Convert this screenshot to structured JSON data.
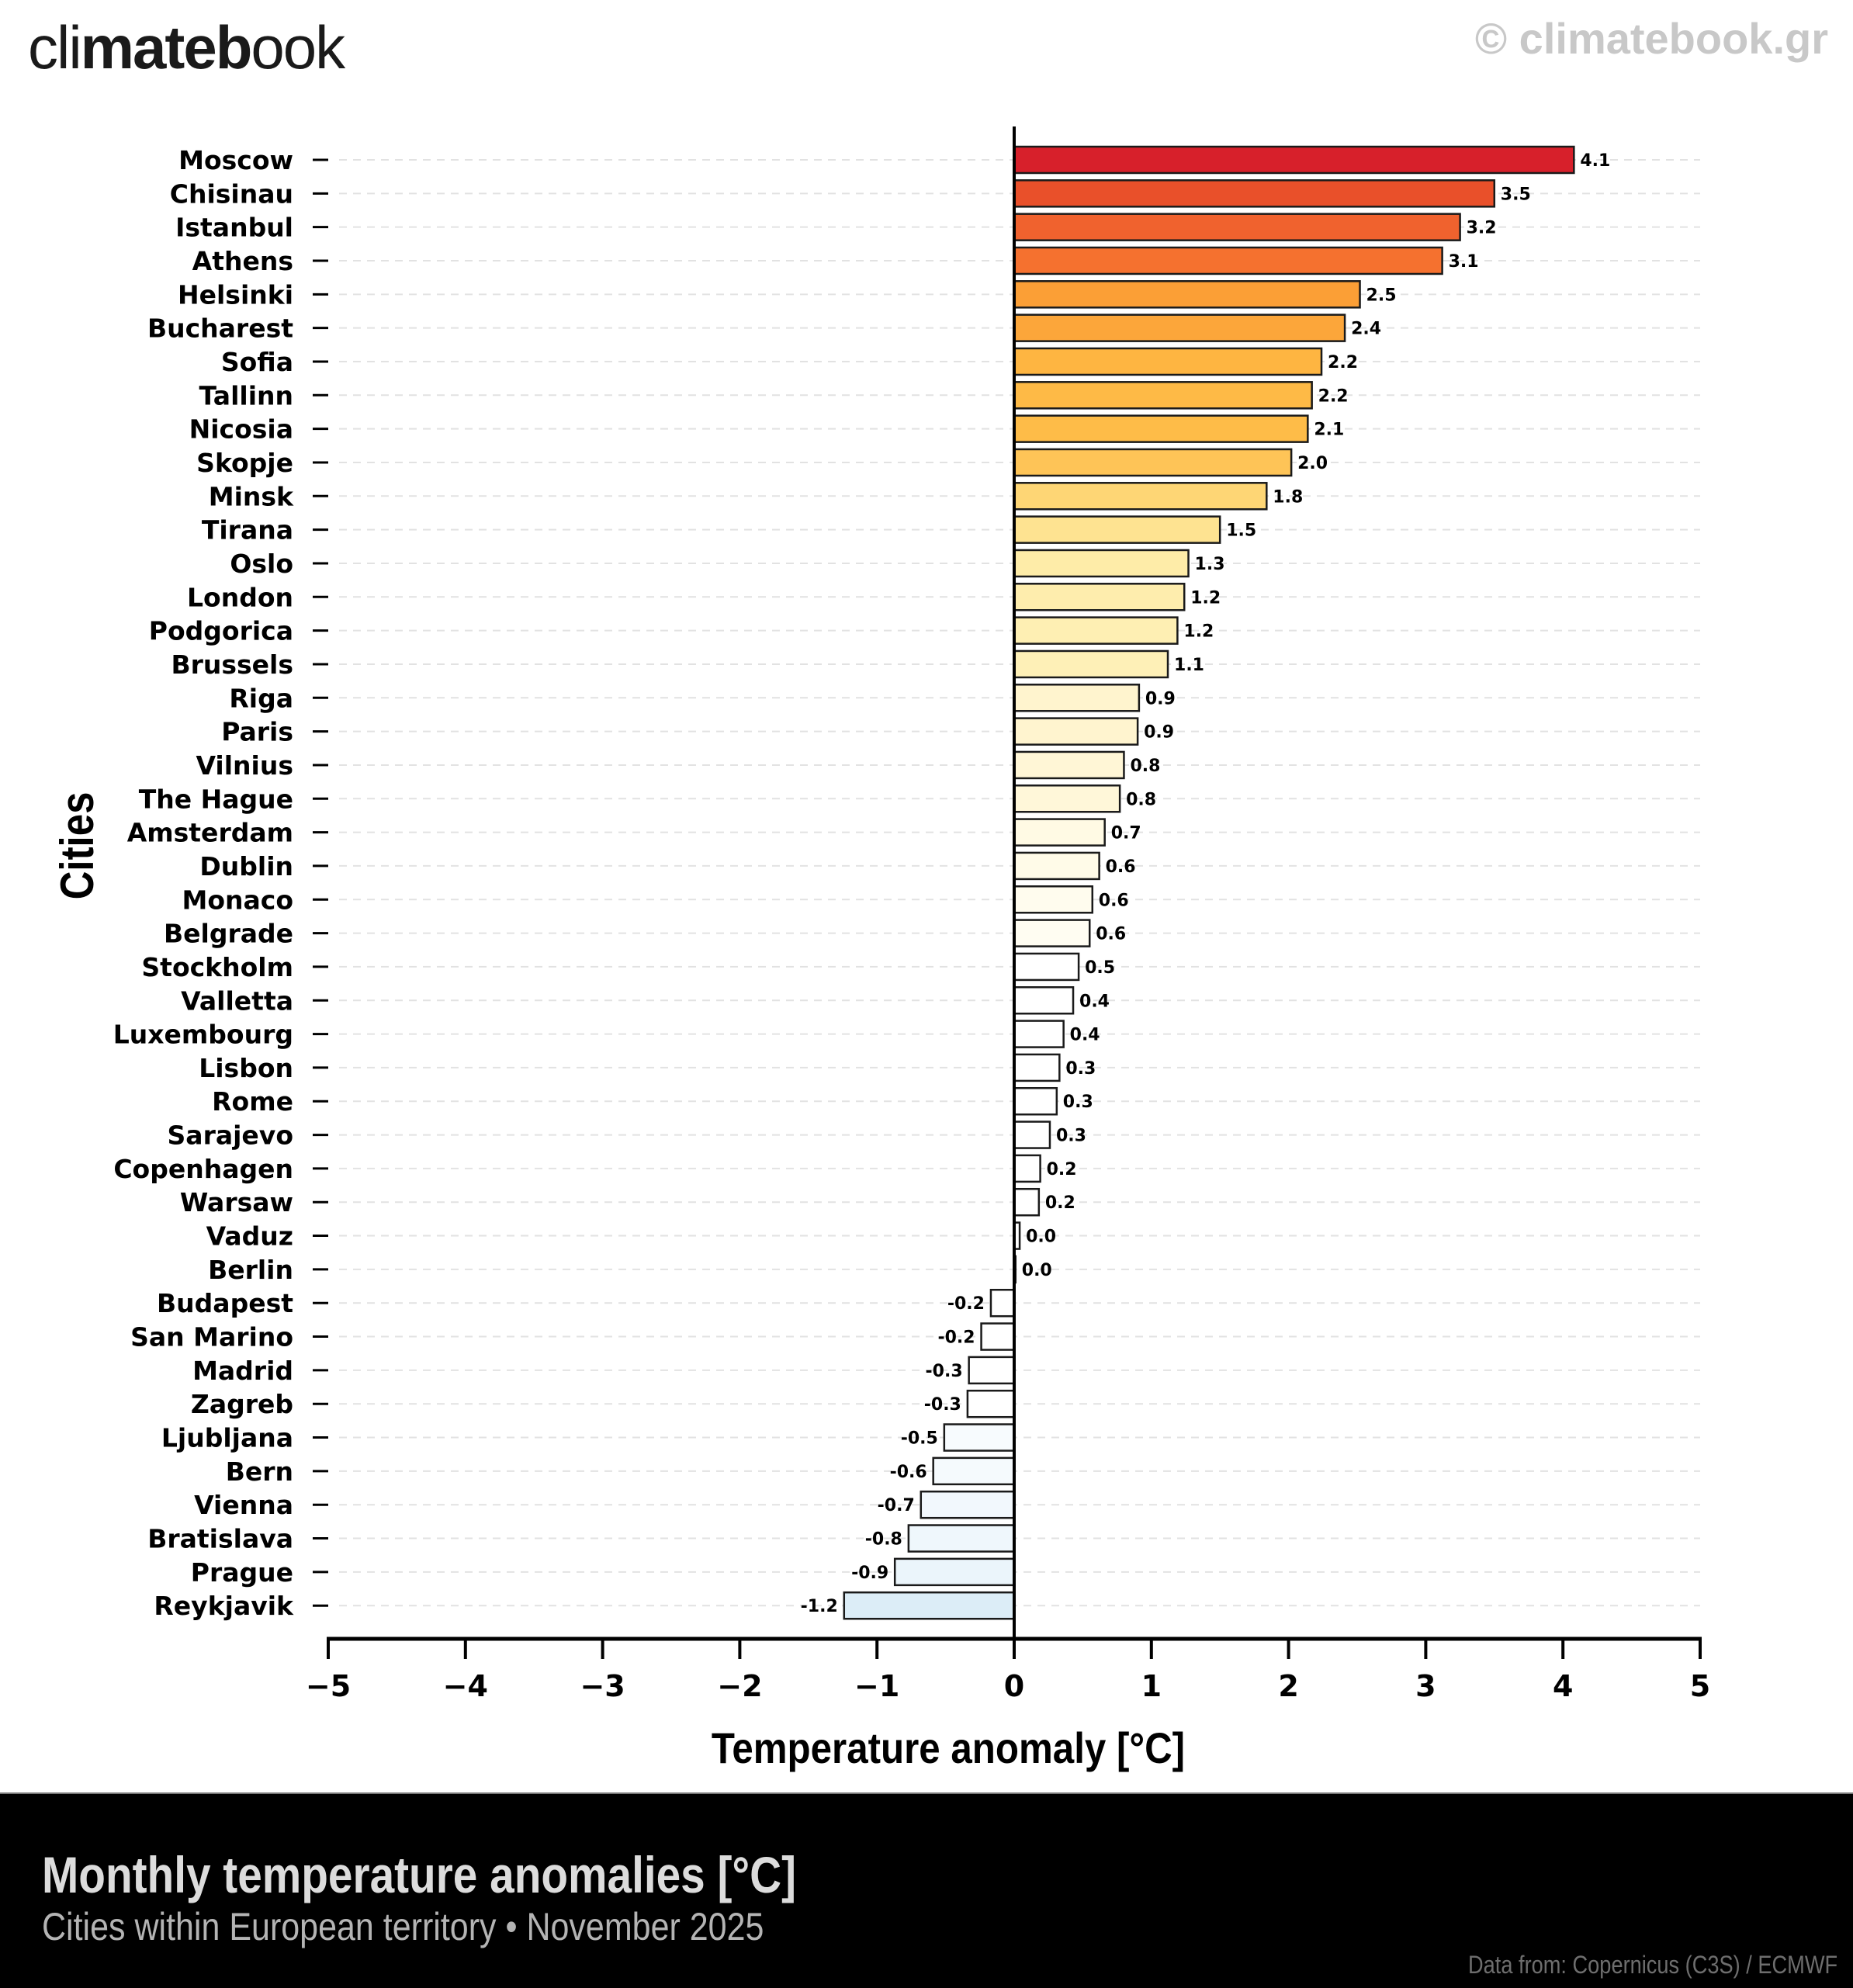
{
  "header": {
    "logo_light_prefix": "cli",
    "logo_bold": "mateb",
    "logo_light_suffix": "ook",
    "copyright": "© climatebook.gr"
  },
  "footer": {
    "title": "Monthly temperature anomalies [°C]",
    "subtitle": "Cities within European territory • November 2025",
    "source": "Data from: Copernicus (C3S) / ECMWF"
  },
  "chart_data": {
    "type": "bar",
    "orientation": "horizontal",
    "title": "Monthly temperature anomalies [°C]",
    "subtitle": "Cities within European territory • November 2025",
    "xlabel": "Temperature anomaly [°C]",
    "ylabel": "Cities",
    "xlim": [
      -5,
      5
    ],
    "xticks": [
      -5,
      -4,
      -3,
      -2,
      -1,
      0,
      1,
      2,
      3,
      4,
      5
    ],
    "xtick_labels": [
      "−5",
      "−4",
      "−3",
      "−2",
      "−1",
      "0",
      "1",
      "2",
      "3",
      "4",
      "5"
    ],
    "grid": "horizontal dashed",
    "categories": [
      "Moscow",
      "Chisinau",
      "Istanbul",
      "Athens",
      "Helsinki",
      "Bucharest",
      "Sofia",
      "Tallinn",
      "Nicosia",
      "Skopje",
      "Minsk",
      "Tirana",
      "Oslo",
      "London",
      "Podgorica",
      "Brussels",
      "Riga",
      "Paris",
      "Vilnius",
      "The Hague",
      "Amsterdam",
      "Dublin",
      "Monaco",
      "Belgrade",
      "Stockholm",
      "Valletta",
      "Luxembourg",
      "Lisbon",
      "Rome",
      "Sarajevo",
      "Copenhagen",
      "Warsaw",
      "Vaduz",
      "Berlin",
      "Budapest",
      "San Marino",
      "Madrid",
      "Zagreb",
      "Ljubljana",
      "Bern",
      "Vienna",
      "Bratislava",
      "Prague",
      "Reykjavik"
    ],
    "values": [
      4.08,
      3.5,
      3.25,
      3.12,
      2.52,
      2.41,
      2.24,
      2.17,
      2.14,
      2.02,
      1.84,
      1.5,
      1.27,
      1.24,
      1.19,
      1.12,
      0.91,
      0.9,
      0.8,
      0.77,
      0.66,
      0.62,
      0.57,
      0.55,
      0.47,
      0.43,
      0.36,
      0.33,
      0.31,
      0.26,
      0.19,
      0.18,
      0.04,
      0.01,
      -0.17,
      -0.24,
      -0.33,
      -0.34,
      -0.51,
      -0.59,
      -0.68,
      -0.77,
      -0.87,
      -1.24
    ],
    "value_labels": [
      "4.1",
      "3.5",
      "3.2",
      "3.1",
      "2.5",
      "2.4",
      "2.2",
      "2.2",
      "2.1",
      "2.0",
      "1.8",
      "1.5",
      "1.3",
      "1.2",
      "1.2",
      "1.1",
      "0.9",
      "0.9",
      "0.8",
      "0.8",
      "0.7",
      "0.6",
      "0.6",
      "0.6",
      "0.5",
      "0.4",
      "0.4",
      "0.3",
      "0.3",
      "0.3",
      "0.2",
      "0.2",
      "0.0",
      "0.0",
      "-0.2",
      "-0.2",
      "-0.3",
      "-0.3",
      "-0.5",
      "-0.6",
      "-0.7",
      "-0.8",
      "-0.9",
      "-1.2"
    ],
    "colors": [
      "#d7202b",
      "#e9502a",
      "#f0622e",
      "#f5712f",
      "#fb9f36",
      "#fca63a",
      "#feb541",
      "#feba46",
      "#febc48",
      "#fec457",
      "#fed675",
      "#fee391",
      "#feeca8",
      "#feedad",
      "#feefb3",
      "#fef0b7",
      "#fff4ce",
      "#fff4cf",
      "#fff6d6",
      "#fff7d9",
      "#fffae4",
      "#fffbe8",
      "#fffcee",
      "#fffdf2",
      "#ffffff",
      "#ffffff",
      "#ffffff",
      "#ffffff",
      "#ffffff",
      "#ffffff",
      "#ffffff",
      "#ffffff",
      "#ffffff",
      "#ffffff",
      "#ffffff",
      "#ffffff",
      "#ffffff",
      "#ffffff",
      "#f7fbfe",
      "#f5fafd",
      "#f2f8fd",
      "#eff7fc",
      "#ebf5fb",
      "#dcedf7"
    ]
  }
}
